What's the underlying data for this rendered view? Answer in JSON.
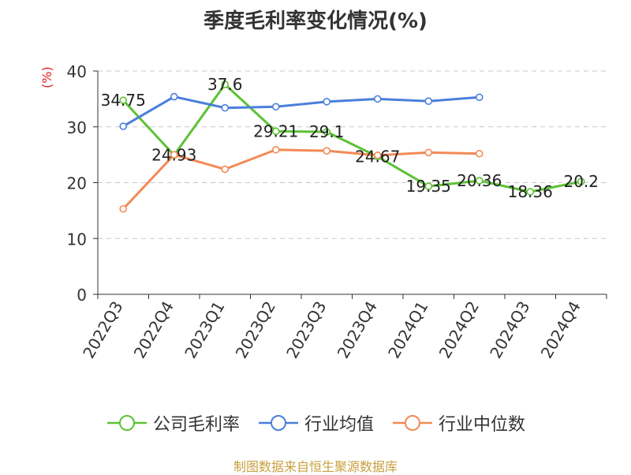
{
  "chart_data": {
    "type": "line",
    "title": "季度毛利率变化情况(%)",
    "ylabel": "(%)",
    "xlabel": "",
    "ylim": [
      0,
      40
    ],
    "yticks": [
      0,
      10,
      20,
      30,
      40
    ],
    "grid": true,
    "legend_position": "bottom",
    "categories": [
      "2022Q3",
      "2022Q4",
      "2023Q1",
      "2023Q2",
      "2023Q3",
      "2023Q4",
      "2024Q1",
      "2024Q2",
      "2024Q3",
      "2024Q4"
    ],
    "series": [
      {
        "name": "公司毛利率",
        "color": "#5cc234",
        "values": [
          34.75,
          24.93,
          37.6,
          29.21,
          29.1,
          24.67,
          19.35,
          20.36,
          18.36,
          20.2
        ],
        "labels": [
          "34.75",
          "24.93",
          "37.6",
          "29.21",
          "29.1",
          "24.67",
          "19.35",
          "20.36",
          "18.36",
          "20.2"
        ]
      },
      {
        "name": "行业均值",
        "color": "#4a7fdc",
        "values": [
          30.1,
          35.4,
          33.4,
          33.6,
          34.5,
          35.0,
          34.6,
          35.3,
          null,
          null
        ]
      },
      {
        "name": "行业中位数",
        "color": "#f38a56",
        "values": [
          15.3,
          25.0,
          22.4,
          25.9,
          25.7,
          24.9,
          25.4,
          25.2,
          null,
          null
        ]
      }
    ]
  },
  "footer": {
    "source": "制图数据来自恒生聚源数据库"
  }
}
